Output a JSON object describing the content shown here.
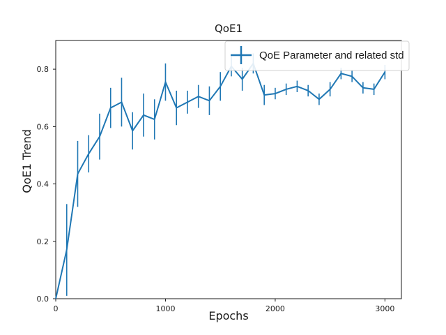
{
  "chart_data": {
    "type": "line",
    "title": "QoE1",
    "xlabel": "Epochs",
    "ylabel": "QoE1 Trend",
    "xlim": [
      0,
      3150
    ],
    "ylim": [
      0,
      0.9
    ],
    "xticks": [
      0,
      1000,
      2000,
      3000
    ],
    "yticks": [
      0.0,
      0.2,
      0.4,
      0.6,
      0.8
    ],
    "xtick_labels": [
      "0",
      "1000",
      "2000",
      "3000"
    ],
    "ytick_labels": [
      "0.0",
      "0.2",
      "0.4",
      "0.6",
      "0.8"
    ],
    "grid": false,
    "legend_position": "top-right",
    "colors": {
      "series": "#1f77b4"
    },
    "series": [
      {
        "name": "QoE Parameter and related std",
        "x": [
          0,
          100,
          200,
          300,
          400,
          500,
          600,
          700,
          800,
          900,
          1000,
          1100,
          1200,
          1300,
          1400,
          1500,
          1600,
          1700,
          1800,
          1900,
          2000,
          2100,
          2200,
          2300,
          2400,
          2500,
          2600,
          2700,
          2800,
          2900,
          3000
        ],
        "y": [
          0.0,
          0.17,
          0.435,
          0.505,
          0.565,
          0.665,
          0.685,
          0.585,
          0.64,
          0.625,
          0.755,
          0.665,
          0.685,
          0.705,
          0.69,
          0.74,
          0.81,
          0.765,
          0.82,
          0.71,
          0.715,
          0.73,
          0.74,
          0.725,
          0.695,
          0.73,
          0.785,
          0.775,
          0.735,
          0.73,
          0.79
        ],
        "std": [
          0.0,
          0.16,
          0.115,
          0.065,
          0.08,
          0.07,
          0.085,
          0.065,
          0.075,
          0.07,
          0.065,
          0.06,
          0.04,
          0.04,
          0.05,
          0.05,
          0.035,
          0.04,
          0.035,
          0.035,
          0.02,
          0.02,
          0.02,
          0.02,
          0.02,
          0.025,
          0.02,
          0.02,
          0.02,
          0.02,
          0.025
        ]
      }
    ]
  }
}
